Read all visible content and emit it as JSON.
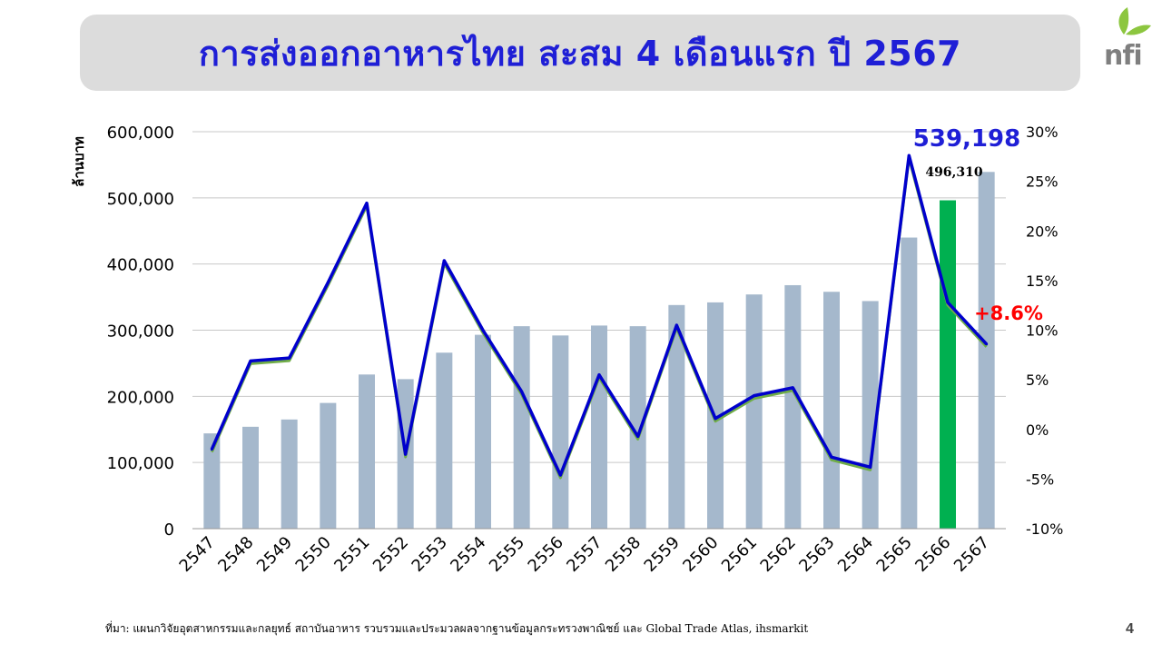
{
  "page": {
    "title": "การส่งออกอาหารไทย สะสม 4 เดือนแรก ปี 2567",
    "logo_text": "nfi",
    "source": "ที่มา: แผนกวิจัยอุตสาหกรรมและกลยุทธ์   สถาบันอาหาร รวบรวมและประมวลผลจากฐานข้อมูลกระทรวงพาณิชย์  และ Global Trade Atlas, ihsmarkit",
    "page_number": "4",
    "colors": {
      "title": "#1f1fd6",
      "bar": "#a5b8cc",
      "highlight_bar": "#00b050",
      "line": "#0000cc",
      "line_shadow": "#70ad47",
      "growth_label": "#ff0000",
      "value_label": "#1f1fd6"
    }
  },
  "chart_data": {
    "type": "bar",
    "categories": [
      "2547",
      "2548",
      "2549",
      "2550",
      "2551",
      "2552",
      "2553",
      "2554",
      "2555",
      "2556",
      "2557",
      "2558",
      "2559",
      "2560",
      "2561",
      "2562",
      "2563",
      "2564",
      "2565",
      "2566",
      "2567"
    ],
    "series": [
      {
        "values": [
          144000,
          154000,
          165000,
          190000,
          233000,
          226000,
          266000,
          293000,
          306000,
          292000,
          307000,
          306000,
          338000,
          342000,
          354000,
          368000,
          358000,
          344000,
          440000,
          496310,
          539198
        ]
      },
      {
        "type": "line",
        "axis": "right",
        "values": [
          -2.0,
          6.9,
          7.2,
          14.8,
          22.8,
          -2.5,
          17.0,
          10.0,
          3.8,
          -4.6,
          5.5,
          -0.7,
          10.5,
          1.1,
          3.4,
          4.2,
          -2.8,
          -3.8,
          27.6,
          12.8,
          8.6
        ]
      }
    ],
    "ylabel": "ล้านบาท",
    "ylim": [
      0,
      600000
    ],
    "yticks": [
      "0",
      "100,000",
      "200,000",
      "300,000",
      "400,000",
      "500,000",
      "600,000"
    ],
    "y2lim": [
      -10,
      30
    ],
    "y2ticks": [
      "-10%",
      "-5%",
      "0%",
      "5%",
      "10%",
      "15%",
      "20%",
      "25%",
      "30%"
    ],
    "highlight_index": 19,
    "annotations": {
      "last_value": "539,198",
      "prev_value": "496,310",
      "last_growth": "+8.6%"
    },
    "grid": true
  }
}
